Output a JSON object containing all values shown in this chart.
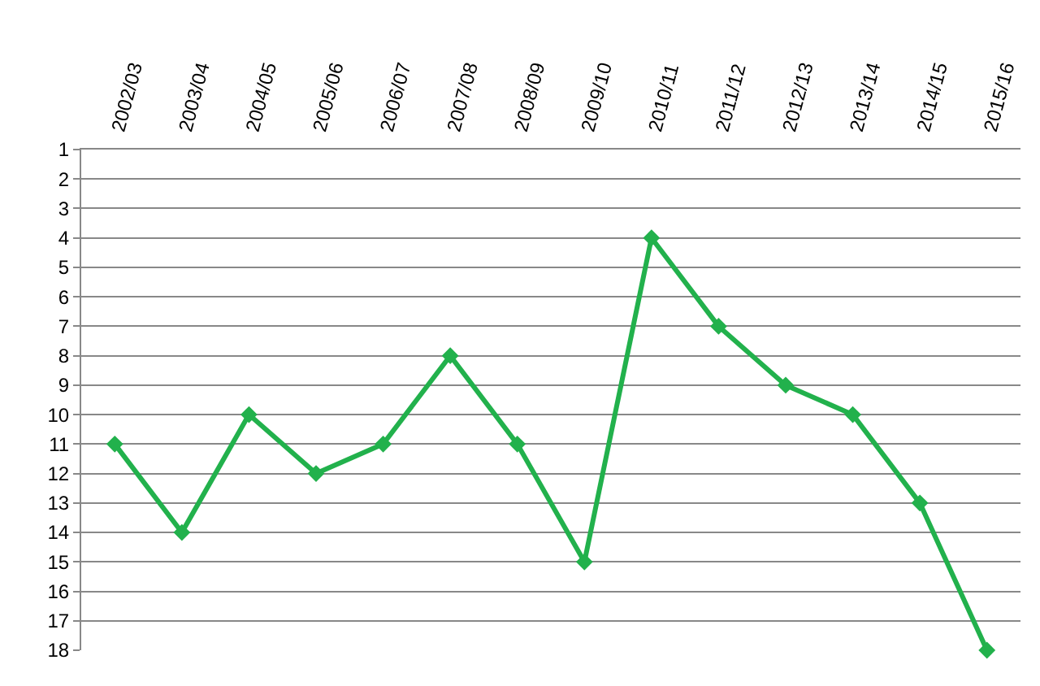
{
  "chart_data": {
    "type": "line",
    "categories": [
      "2002/03",
      "2003/04",
      "2004/05",
      "2005/06",
      "2006/07",
      "2007/08",
      "2008/09",
      "2009/10",
      "2010/11",
      "2011/12",
      "2012/13",
      "2013/14",
      "2014/15",
      "2015/16"
    ],
    "values": [
      11,
      14,
      10,
      12,
      11,
      8,
      11,
      15,
      4,
      7,
      9,
      10,
      13,
      18
    ],
    "color": "#22b14c",
    "ylim": [
      18,
      1
    ],
    "yticks": [
      1,
      2,
      3,
      4,
      5,
      6,
      7,
      8,
      9,
      10,
      11,
      12,
      13,
      14,
      15,
      16,
      17,
      18
    ],
    "grid": "y",
    "marker": "diamond",
    "line_style": "solid"
  }
}
